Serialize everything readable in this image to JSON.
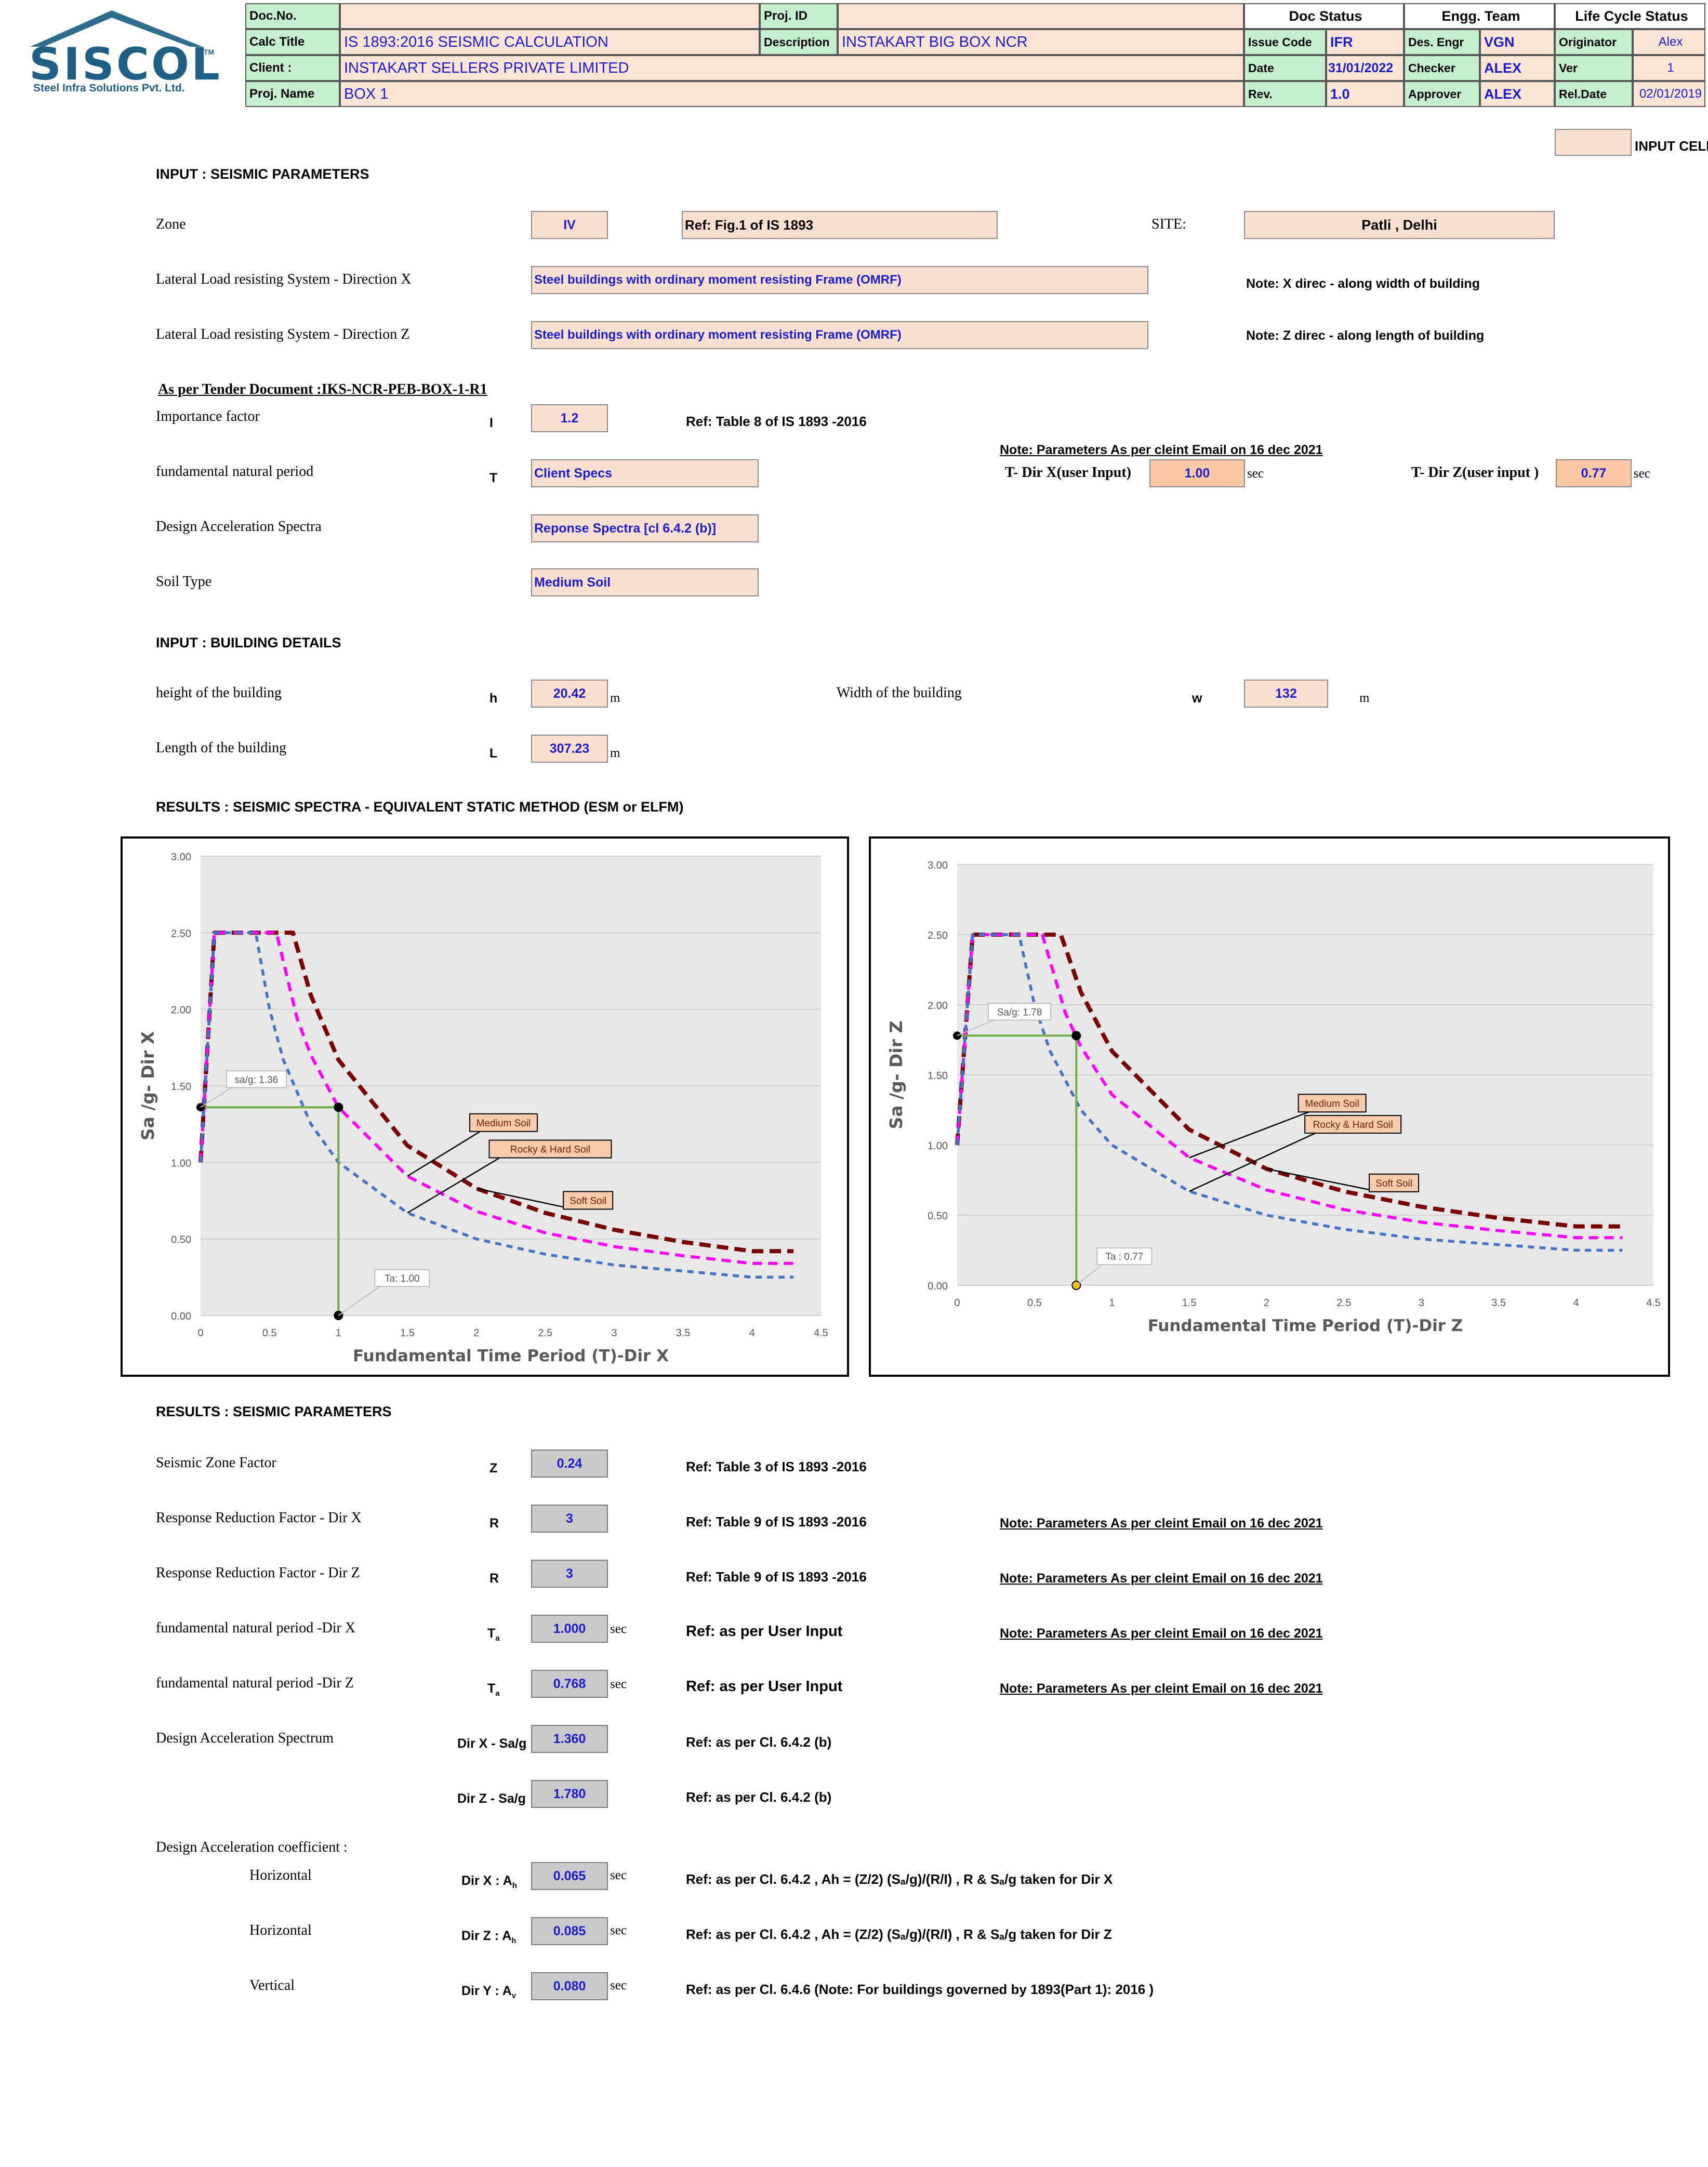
{
  "logo": {
    "name": "SISCOL",
    "tm": "TM",
    "tagline": "Steel Infra Solutions Pvt. Ltd."
  },
  "header": {
    "doc_no_label": "Doc.No.",
    "doc_no": "",
    "proj_id_label": "Proj. ID",
    "proj_id": "",
    "calc_title_label": "Calc Title",
    "calc_title": "IS 1893:2016  SEISMIC CALCULATION",
    "description_label": "Description",
    "description": "INSTAKART BIG BOX NCR",
    "client_label": "Client :",
    "client": "INSTAKART  SELLERS PRIVATE LIMITED",
    "proj_name_label": "Proj. Name",
    "proj_name": "BOX 1",
    "doc_status": "Doc Status",
    "engg_team": "Engg. Team",
    "life_cycle": "Life Cycle Status",
    "issue_code_label": "Issue Code",
    "issue_code": "IFR",
    "date_label": "Date",
    "date": "31/01/2022",
    "rev_label": "Rev.",
    "rev": "1.0",
    "des_engr_label": "Des. Engr",
    "des_engr": "VGN",
    "checker_label": "Checker",
    "checker": "ALEX",
    "approver_label": "Approver",
    "approver": "ALEX",
    "originator_label": "Originator",
    "originator": "Alex",
    "ver_label": "Ver",
    "ver": "1",
    "rel_date_label": "Rel.Date",
    "rel_date": "02/01/2019"
  },
  "legend_input_cell": "INPUT CELL",
  "seismic_input": {
    "heading": "INPUT : SEISMIC PARAMETERS",
    "zone_label": "Zone",
    "zone": "IV",
    "zone_ref": "Ref: Fig.1 of IS 1893",
    "site_label": "SITE:",
    "site": "Patli , Delhi",
    "llrs_x_label": "Lateral Load resisting System - Direction X",
    "llrs_x": "Steel buildings with ordinary moment resisting Frame (OMRF)",
    "llrs_x_note": "Note: X direc - along width of building",
    "llrs_z_label": "Lateral Load resisting System - Direction Z",
    "llrs_z": "Steel buildings with ordinary moment resisting Frame (OMRF)",
    "llrs_z_note": "Note: Z direc - along length of building",
    "tender": "As per Tender Document  :IKS-NCR-PEB-BOX-1-R1",
    "importance_label": "Importance factor",
    "importance_sym": "I",
    "importance": "1.2",
    "importance_ref": "Ref: Table 8 of IS 1893 -2016",
    "client_note": "Note: Parameters As per cleint Email on 16 dec 2021",
    "period_label": "fundamental natural period",
    "period_sym": "T",
    "period": "Client Specs",
    "tx_label": "T- Dir X(user Input)",
    "tx": "1.00",
    "tx_unit": "sec",
    "tz_label": "T- Dir Z(user input )",
    "tz": "0.77",
    "tz_unit": "sec",
    "spectra_label": "Design Acceleration Spectra",
    "spectra": "Reponse Spectra [cl 6.4.2 (b)]",
    "soil_label": "Soil Type",
    "soil": "Medium Soil"
  },
  "building_input": {
    "heading": "INPUT : BUILDING DETAILS",
    "height_label": "height of the building",
    "height_sym": "h",
    "height": "20.42",
    "height_unit": "m",
    "width_label": "Width of the building",
    "width_sym": "w",
    "width": "132",
    "width_unit": "m",
    "length_label": "Length  of the building",
    "length_sym": "L",
    "length": "307.23",
    "length_unit": "m"
  },
  "results_spectra_heading": "RESULTS : SEISMIC SPECTRA - EQUIVALENT STATIC METHOD (ESM  or  ELFM)",
  "chart_data": [
    {
      "type": "line",
      "xlabel": "Fundamental Time Period (T)-Dir X",
      "ylabel": "Sa /g-  Dir X",
      "xlim": [
        0,
        4.5
      ],
      "ylim": [
        0,
        3
      ],
      "x_ticks": [
        "0",
        "0.5",
        "1",
        "1.5",
        "2",
        "2.5",
        "3",
        "3.5",
        "4",
        "4.5"
      ],
      "y_ticks": [
        "0.00",
        "0.50",
        "1.00",
        "1.50",
        "2.00",
        "2.50",
        "3.00"
      ],
      "grid": true,
      "series": [
        {
          "name": "Soft Soil",
          "color": "#7a0000",
          "x": [
            0,
            0.1,
            0.2,
            0.3,
            0.4,
            0.5,
            0.67,
            0.8,
            1,
            1.5,
            2,
            2.5,
            3,
            3.5,
            4,
            4.3
          ],
          "y": [
            1,
            2.5,
            2.5,
            2.5,
            2.5,
            2.5,
            2.5,
            2.09,
            1.67,
            1.11,
            0.83,
            0.67,
            0.56,
            0.48,
            0.42,
            0.42
          ]
        },
        {
          "name": "Medium Soil",
          "color": "#ff00ff",
          "x": [
            0,
            0.1,
            0.2,
            0.3,
            0.4,
            0.55,
            0.7,
            0.8,
            1,
            1.5,
            2,
            2.5,
            3,
            3.5,
            4,
            4.3
          ],
          "y": [
            1,
            2.5,
            2.5,
            2.5,
            2.5,
            2.5,
            1.94,
            1.7,
            1.36,
            0.91,
            0.68,
            0.54,
            0.45,
            0.39,
            0.34,
            0.34
          ]
        },
        {
          "name": "Rocky & Hard Soil",
          "color": "#4472c4",
          "x": [
            0,
            0.1,
            0.2,
            0.3,
            0.4,
            0.5,
            0.6,
            0.8,
            1,
            1.5,
            2,
            2.5,
            3,
            3.5,
            4,
            4.3
          ],
          "y": [
            1,
            2.5,
            2.5,
            2.5,
            2.5,
            2,
            1.67,
            1.25,
            1,
            0.67,
            0.5,
            0.4,
            0.33,
            0.29,
            0.25,
            0.25
          ]
        }
      ],
      "annotations": [
        {
          "text": "sa/g:  1.36",
          "x": 0,
          "y": 1.36
        },
        {
          "text": "Ta: 1.00",
          "x": 1,
          "y": 0
        }
      ],
      "marker": {
        "x": 1,
        "y": 1.36
      }
    },
    {
      "type": "line",
      "xlabel": "Fundamental Time Period (T)-Dir Z",
      "ylabel": "Sa /g-   Dir Z",
      "xlim": [
        0,
        4.5
      ],
      "ylim": [
        0,
        3
      ],
      "x_ticks": [
        "0",
        "0.5",
        "1",
        "1.5",
        "2",
        "2.5",
        "3",
        "3.5",
        "4",
        "4.5"
      ],
      "y_ticks": [
        "0.00",
        "0.50",
        "1.00",
        "1.50",
        "2.00",
        "2.50",
        "3.00"
      ],
      "grid": true,
      "series": [
        {
          "name": "Soft Soil",
          "color": "#7a0000",
          "x": [
            0,
            0.1,
            0.2,
            0.3,
            0.4,
            0.5,
            0.67,
            0.8,
            1,
            1.5,
            2,
            2.5,
            3,
            3.5,
            4,
            4.3
          ],
          "y": [
            1,
            2.5,
            2.5,
            2.5,
            2.5,
            2.5,
            2.5,
            2.09,
            1.67,
            1.11,
            0.83,
            0.67,
            0.56,
            0.48,
            0.42,
            0.42
          ]
        },
        {
          "name": "Medium Soil",
          "color": "#ff00ff",
          "x": [
            0,
            0.1,
            0.2,
            0.3,
            0.4,
            0.55,
            0.7,
            0.8,
            1,
            1.5,
            2,
            2.5,
            3,
            3.5,
            4,
            4.3
          ],
          "y": [
            1,
            2.5,
            2.5,
            2.5,
            2.5,
            2.5,
            1.94,
            1.7,
            1.36,
            0.91,
            0.68,
            0.54,
            0.45,
            0.39,
            0.34,
            0.34
          ]
        },
        {
          "name": "Rocky & Hard Soil",
          "color": "#4472c4",
          "x": [
            0,
            0.1,
            0.2,
            0.3,
            0.4,
            0.5,
            0.6,
            0.8,
            1,
            1.5,
            2,
            2.5,
            3,
            3.5,
            4,
            4.3
          ],
          "y": [
            1,
            2.5,
            2.5,
            2.5,
            2.5,
            2,
            1.67,
            1.25,
            1,
            0.67,
            0.5,
            0.4,
            0.33,
            0.29,
            0.25,
            0.25
          ]
        }
      ],
      "annotations": [
        {
          "text": "Sa/g: 1.78",
          "x": 0,
          "y": 1.78
        },
        {
          "text": "Ta : 0.77",
          "x": 0.77,
          "y": 0
        }
      ],
      "marker": {
        "x": 0.77,
        "y": 1.78
      }
    }
  ],
  "results": {
    "heading": "RESULTS : SEISMIC PARAMETERS",
    "z_label": "Seismic Zone Factor",
    "z_sym": "Z",
    "z": "0.24",
    "z_ref": "Ref: Table 3 of IS 1893 -2016",
    "rx_label": "Response Reduction Factor - Dir X",
    "rx_sym": "R",
    "rx": "3",
    "rx_ref": "Ref: Table 9 of IS 1893 -2016",
    "rz_label": "Response Reduction Factor - Dir Z",
    "rz_sym": "R",
    "rz": "3",
    "rz_ref": "Ref: Table 9 of IS 1893 -2016",
    "note": "Note: Parameters As per cleint Email on 16 dec 2021",
    "tax_label": "fundamental natural period  -Dir X",
    "ta_sym": "T",
    "ta_sub": "a",
    "tax": "1.000",
    "tax_unit": "sec",
    "tax_ref": "Ref: as per User Input",
    "taz_label": "fundamental natural period  -Dir Z",
    "taz": "0.768",
    "taz_unit": "sec",
    "taz_ref": "Ref: as per User Input",
    "das_label": "Design Acceleration Spectrum",
    "sax_sym": "Dir X - Sa/g",
    "sax": "1.360",
    "sax_ref": "Ref: as per Cl. 6.4.2 (b)",
    "saz_sym": "Dir Z - Sa/g",
    "saz": "1.780",
    "saz_ref": "Ref: as per Cl. 6.4.2 (b)",
    "dac_label": "Design Acceleration coefficient :",
    "horizontal": "Horizontal",
    "vertical": "Vertical",
    "ahx_sym": "Dir X  :  A",
    "ah_sub": "h",
    "ahx": "0.065",
    "ahx_unit": "sec",
    "ahx_ref": "Ref: as per Cl. 6.4.2  , Ah = (Z/2) (Sₐ/g)/(R/I)  , R & Sₐ/g taken for Dir X",
    "ahz_sym": "Dir Z  :  A",
    "ahz": "0.085",
    "ahz_unit": "sec",
    "ahz_ref": "Ref: as per Cl. 6.4.2  , Ah = (Z/2) (Sₐ/g)/(R/I)  , R & Sₐ/g taken for Dir Z",
    "av_sym": "Dir Y  :  A",
    "av_sub": "v",
    "av": "0.080",
    "av_unit": "sec",
    "av_ref": "Ref: as per Cl. 6.4.6 (Note: For buildings governed by 1893(Part 1): 2016 )"
  }
}
